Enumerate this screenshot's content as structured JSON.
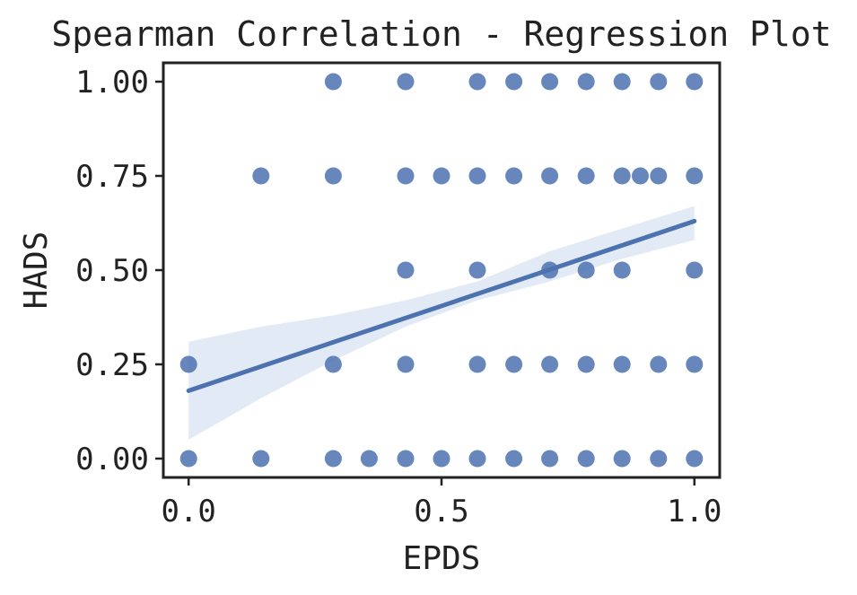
{
  "colors": {
    "points": "#4c72b0",
    "line": "#4c72b0",
    "band": "#dde6f3",
    "axes": "#222222",
    "background": "#ffffff"
  },
  "chart_data": {
    "type": "scatter",
    "title": "Spearman Correlation - Regression Plot",
    "xlabel": "EPDS",
    "ylabel": "HADS",
    "xlim": [
      -0.05,
      1.05
    ],
    "ylim": [
      -0.05,
      1.05
    ],
    "x_ticks": [
      0.0,
      0.5,
      1.0
    ],
    "x_tick_labels": [
      "0.0",
      "0.5",
      "1.0"
    ],
    "y_ticks": [
      0.0,
      0.25,
      0.5,
      0.75,
      1.0
    ],
    "y_tick_labels": [
      "0.00",
      "0.25",
      "0.50",
      "0.75",
      "1.00"
    ],
    "grid": false,
    "points": [
      {
        "x": 0.0,
        "y": 0.0
      },
      {
        "x": 0.0,
        "y": 0.25
      },
      {
        "x": 0.143,
        "y": 0.0
      },
      {
        "x": 0.143,
        "y": 0.75
      },
      {
        "x": 0.286,
        "y": 0.0
      },
      {
        "x": 0.286,
        "y": 0.25
      },
      {
        "x": 0.286,
        "y": 0.75
      },
      {
        "x": 0.286,
        "y": 1.0
      },
      {
        "x": 0.357,
        "y": 0.0
      },
      {
        "x": 0.429,
        "y": 0.0
      },
      {
        "x": 0.429,
        "y": 0.25
      },
      {
        "x": 0.429,
        "y": 0.5
      },
      {
        "x": 0.429,
        "y": 0.75
      },
      {
        "x": 0.429,
        "y": 1.0
      },
      {
        "x": 0.5,
        "y": 0.0
      },
      {
        "x": 0.5,
        "y": 0.75
      },
      {
        "x": 0.571,
        "y": 0.0
      },
      {
        "x": 0.571,
        "y": 0.25
      },
      {
        "x": 0.571,
        "y": 0.5
      },
      {
        "x": 0.571,
        "y": 0.75
      },
      {
        "x": 0.571,
        "y": 1.0
      },
      {
        "x": 0.643,
        "y": 0.0
      },
      {
        "x": 0.643,
        "y": 0.25
      },
      {
        "x": 0.643,
        "y": 0.75
      },
      {
        "x": 0.643,
        "y": 1.0
      },
      {
        "x": 0.714,
        "y": 0.0
      },
      {
        "x": 0.714,
        "y": 0.25
      },
      {
        "x": 0.714,
        "y": 0.5
      },
      {
        "x": 0.714,
        "y": 0.75
      },
      {
        "x": 0.714,
        "y": 1.0
      },
      {
        "x": 0.786,
        "y": 0.0
      },
      {
        "x": 0.786,
        "y": 0.25
      },
      {
        "x": 0.786,
        "y": 0.5
      },
      {
        "x": 0.786,
        "y": 0.75
      },
      {
        "x": 0.786,
        "y": 1.0
      },
      {
        "x": 0.857,
        "y": 0.0
      },
      {
        "x": 0.857,
        "y": 0.25
      },
      {
        "x": 0.857,
        "y": 0.5
      },
      {
        "x": 0.857,
        "y": 0.75
      },
      {
        "x": 0.857,
        "y": 1.0
      },
      {
        "x": 0.893,
        "y": 0.75
      },
      {
        "x": 0.929,
        "y": 0.0
      },
      {
        "x": 0.929,
        "y": 0.25
      },
      {
        "x": 0.929,
        "y": 0.75
      },
      {
        "x": 0.929,
        "y": 1.0
      },
      {
        "x": 1.0,
        "y": 0.0
      },
      {
        "x": 1.0,
        "y": 0.25
      },
      {
        "x": 1.0,
        "y": 0.5
      },
      {
        "x": 1.0,
        "y": 0.75
      },
      {
        "x": 1.0,
        "y": 1.0
      }
    ],
    "regression": {
      "x": [
        0.0,
        1.0
      ],
      "y": [
        0.18,
        0.63
      ]
    },
    "confidence_band": {
      "x": [
        0.0,
        0.143,
        0.286,
        0.429,
        0.571,
        0.714,
        0.857,
        1.0
      ],
      "lower": [
        0.05,
        0.16,
        0.26,
        0.35,
        0.42,
        0.47,
        0.53,
        0.58
      ],
      "upper": [
        0.31,
        0.35,
        0.38,
        0.42,
        0.47,
        0.55,
        0.61,
        0.67
      ]
    }
  }
}
